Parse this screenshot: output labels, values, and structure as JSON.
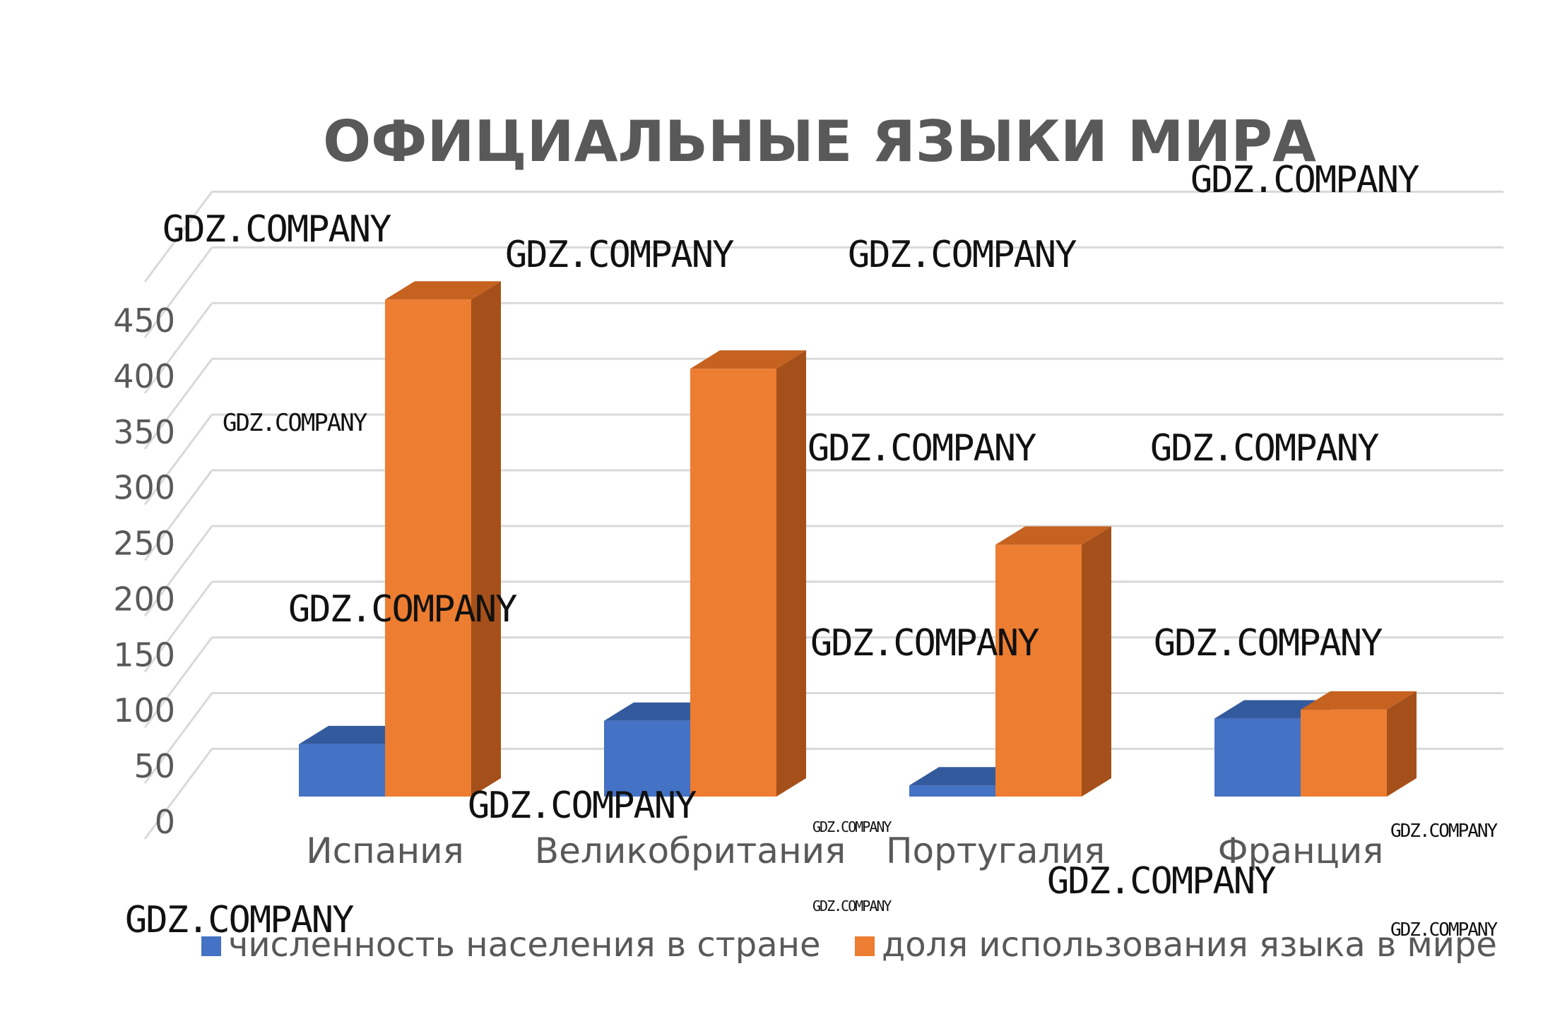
{
  "chart_data": {
    "type": "bar",
    "title": "ОФИЦИАЛЬНЫЕ ЯЗЫКИ МИРА",
    "categories": [
      "Испания",
      "Великобритания",
      "Португалия",
      "Франция"
    ],
    "series": [
      {
        "name": "численность населения в стране",
        "values": [
          47,
          68,
          10,
          70
        ]
      },
      {
        "name": "доля использования языка в мире",
        "values": [
          446,
          384,
          226,
          78
        ]
      }
    ],
    "ylim": [
      0,
      450
    ],
    "yticks": [
      0,
      50,
      100,
      150,
      200,
      250,
      300,
      350,
      400,
      450
    ],
    "grid": true,
    "legend_position": "bottom",
    "colors": {
      "series": [
        {
          "front": "#4472C4",
          "top": "#345A9E",
          "side": "#2F5597"
        },
        {
          "front": "#ED7D31",
          "top": "#C5621F",
          "side": "#A5501A"
        }
      ],
      "grid": "#D9D9D9",
      "text": "#595959"
    }
  },
  "watermark": {
    "text": "GDZ.COMPANY",
    "count": 17
  }
}
